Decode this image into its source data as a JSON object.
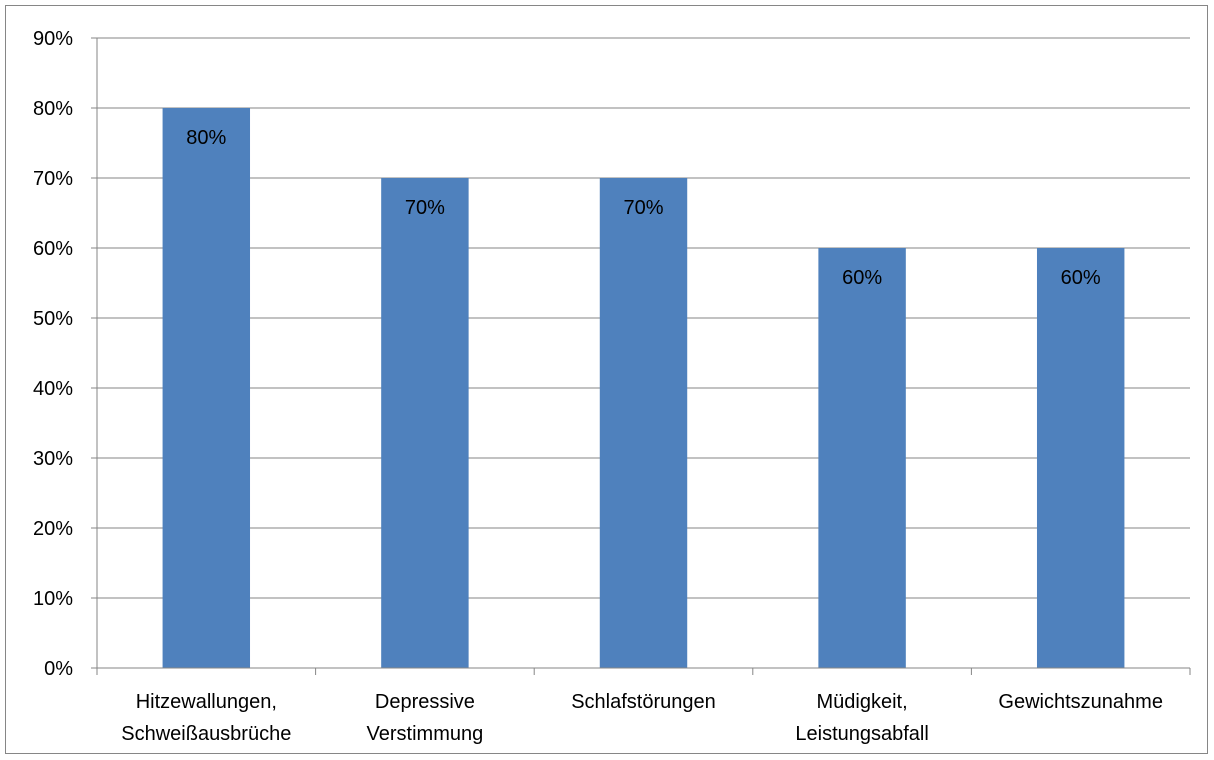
{
  "chart_data": {
    "type": "bar",
    "categories": [
      [
        "Hitzewallungen,",
        "Schweißausbrüche"
      ],
      [
        "Depressive",
        "Verstimmung"
      ],
      [
        "Schlafstörungen"
      ],
      [
        "Müdigkeit,",
        "Leistungsabfall"
      ],
      [
        "Gewichtszunahme"
      ]
    ],
    "values": [
      80,
      70,
      70,
      60,
      60
    ],
    "data_labels": [
      "80%",
      "70%",
      "70%",
      "60%",
      "60%"
    ],
    "ylim": [
      0,
      90
    ],
    "yticks": [
      0,
      10,
      20,
      30,
      40,
      50,
      60,
      70,
      80,
      90
    ],
    "ytick_labels": [
      "0%",
      "10%",
      "20%",
      "30%",
      "40%",
      "50%",
      "60%",
      "70%",
      "80%",
      "90%"
    ],
    "grid": true,
    "legend": "none",
    "bar_color": "#4f81bd",
    "grid_color": "#868686"
  }
}
